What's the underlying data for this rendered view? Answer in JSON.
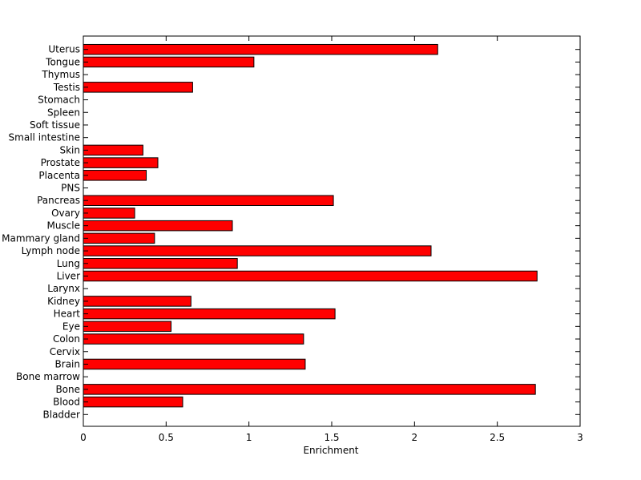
{
  "chart_data": {
    "type": "bar",
    "orientation": "horizontal",
    "title": "",
    "xlabel": "Enrichment",
    "ylabel": "",
    "xlim": [
      0,
      3
    ],
    "xticks": [
      0,
      0.5,
      1,
      1.5,
      2,
      2.5,
      3
    ],
    "xtick_labels": [
      "0",
      "0.5",
      "1",
      "1.5",
      "2",
      "2.5",
      "3"
    ],
    "grid": false,
    "legend": "none",
    "bar_color": "#ff0000",
    "edge_color": "#000000",
    "categories": [
      "Bladder",
      "Blood",
      "Bone",
      "Bone marrow",
      "Brain",
      "Cervix",
      "Colon",
      "Eye",
      "Heart",
      "Kidney",
      "Larynx",
      "Liver",
      "Lung",
      "Lymph node",
      "Mammary gland",
      "Muscle",
      "Ovary",
      "Pancreas",
      "PNS",
      "Placenta",
      "Prostate",
      "Skin",
      "Small intestine",
      "Soft tissue",
      "Spleen",
      "Stomach",
      "Testis",
      "Thymus",
      "Tongue",
      "Uterus"
    ],
    "values": [
      0,
      0.6,
      2.73,
      0,
      1.34,
      0,
      1.33,
      0.53,
      1.52,
      0.65,
      0,
      2.74,
      0.93,
      2.1,
      0.43,
      0.9,
      0.31,
      1.51,
      0,
      0.38,
      0.45,
      0.36,
      0,
      0,
      0,
      0,
      0.66,
      0,
      1.03,
      2.14
    ]
  }
}
